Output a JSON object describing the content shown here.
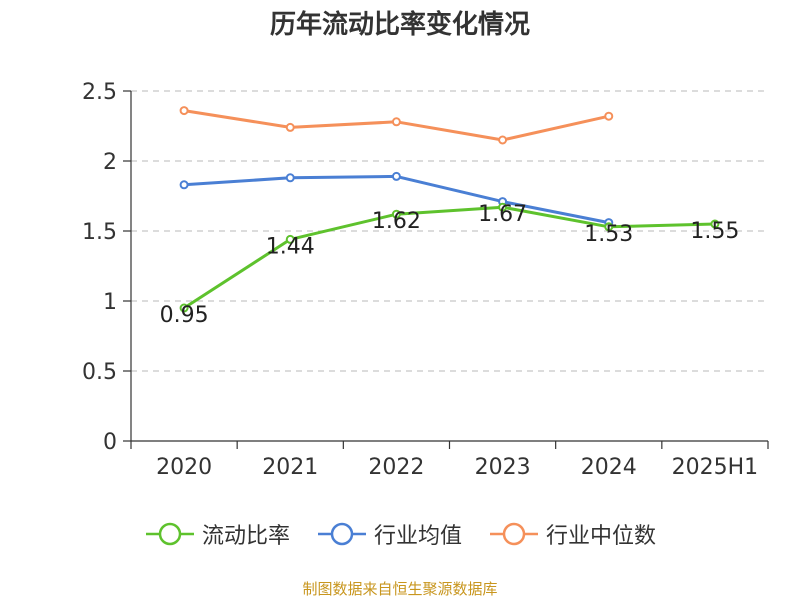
{
  "chart_data": {
    "type": "line",
    "title": "历年流动比率变化情况",
    "categories": [
      "2020",
      "2021",
      "2022",
      "2023",
      "2024",
      "2025H1"
    ],
    "ylim": [
      0,
      2.5
    ],
    "yticks": [
      "0",
      "0.5",
      "1",
      "1.5",
      "2",
      "2.5"
    ],
    "grid": true,
    "legend_position": "bottom",
    "series": [
      {
        "name": "流动比率",
        "color": "#5ec22d",
        "values": [
          0.95,
          1.44,
          1.62,
          1.67,
          1.53,
          1.55
        ],
        "labels": [
          "0.95",
          "1.44",
          "1.62",
          "1.67",
          "1.53",
          "1.55"
        ]
      },
      {
        "name": "行业均值",
        "color": "#4a7fd4",
        "values": [
          1.83,
          1.88,
          1.89,
          1.71,
          1.56,
          null
        ]
      },
      {
        "name": "行业中位数",
        "color": "#f5905a",
        "values": [
          2.36,
          2.24,
          2.28,
          2.15,
          2.32,
          null
        ]
      }
    ]
  },
  "source": "制图数据来自恒生聚源数据库"
}
